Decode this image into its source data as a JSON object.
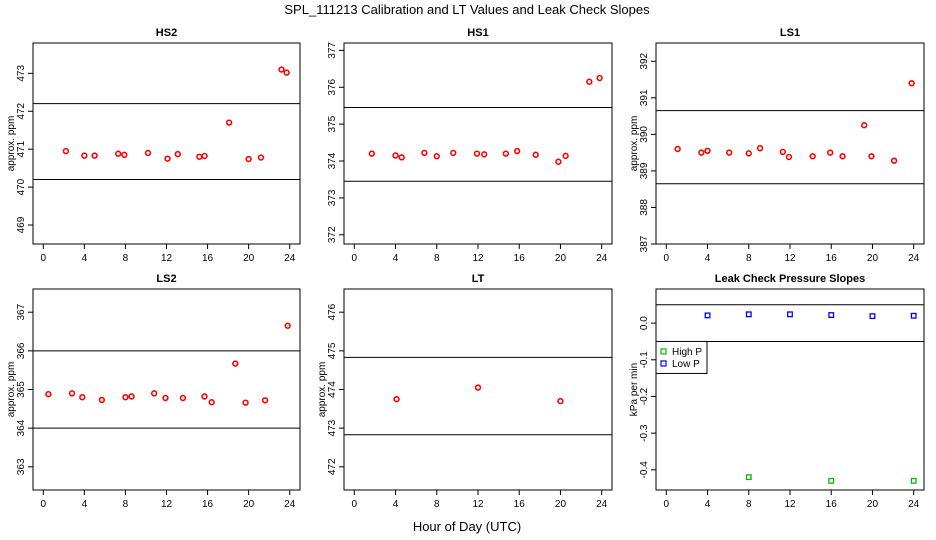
{
  "figure": {
    "title": "SPL_111213  Calibration and LT Values and Leak Check Slopes",
    "xlabel": "Hour of Day (UTC)"
  },
  "chart_data": [
    {
      "id": "hs2",
      "type": "scatter",
      "title": "HS2",
      "ylabel": "approx. ppm",
      "xlim": [
        -1,
        25
      ],
      "ylim": [
        468.5,
        473.8
      ],
      "xticks": [
        0,
        4,
        8,
        12,
        16,
        20,
        24
      ],
      "yticks": [
        469,
        470,
        471,
        472,
        473
      ],
      "ytick_labels": [
        "469",
        "470",
        "471",
        "472",
        "473"
      ],
      "hlines": [
        472.2,
        470.2
      ],
      "series": [
        {
          "name": "HS2",
          "color": "#ff0000",
          "marker": "circle",
          "x": [
            2.2,
            4.0,
            5.0,
            7.3,
            7.9,
            10.2,
            12.1,
            13.1,
            15.2,
            15.7,
            18.1,
            20.0,
            21.2,
            23.2,
            23.7
          ],
          "y": [
            470.95,
            470.83,
            470.83,
            470.88,
            470.85,
            470.9,
            470.75,
            470.87,
            470.8,
            470.82,
            471.7,
            470.74,
            470.78,
            473.1,
            473.02
          ]
        }
      ]
    },
    {
      "id": "hs1",
      "type": "scatter",
      "title": "HS1",
      "ylabel": "",
      "xlim": [
        -1,
        25
      ],
      "ylim": [
        371.75,
        377.2
      ],
      "xticks": [
        0,
        4,
        8,
        12,
        16,
        20,
        24
      ],
      "yticks": [
        372,
        373,
        374,
        375,
        376,
        377
      ],
      "ytick_labels": [
        "372",
        "373",
        "374",
        "375",
        "376",
        "377"
      ],
      "hlines": [
        375.45,
        373.45
      ],
      "series": [
        {
          "name": "HS1",
          "color": "#ff0000",
          "marker": "circle",
          "x": [
            1.7,
            4.0,
            4.6,
            6.8,
            8.0,
            9.6,
            11.9,
            12.6,
            14.7,
            15.8,
            17.6,
            19.8,
            20.5,
            22.8,
            23.8
          ],
          "y": [
            374.2,
            374.15,
            374.1,
            374.22,
            374.13,
            374.22,
            374.2,
            374.18,
            374.2,
            374.27,
            374.17,
            373.98,
            374.14,
            376.15,
            376.25
          ]
        }
      ]
    },
    {
      "id": "ls1",
      "type": "scatter",
      "title": "LS1",
      "ylabel": "approx. ppm",
      "xlim": [
        -1,
        25
      ],
      "ylim": [
        387,
        392.5
      ],
      "xticks": [
        0,
        4,
        8,
        12,
        16,
        20,
        24
      ],
      "yticks": [
        387,
        388,
        389,
        390,
        391,
        392
      ],
      "ytick_labels": [
        "387",
        "388",
        "389",
        "390",
        "391",
        "392"
      ],
      "hlines": [
        390.65,
        388.65
      ],
      "series": [
        {
          "name": "LS1",
          "color": "#ff0000",
          "marker": "circle",
          "x": [
            1.1,
            3.4,
            4.0,
            6.1,
            8.0,
            9.1,
            11.3,
            11.9,
            14.2,
            15.9,
            17.1,
            19.2,
            19.9,
            22.1,
            23.8
          ],
          "y": [
            389.6,
            389.5,
            389.55,
            389.5,
            389.48,
            389.62,
            389.52,
            389.38,
            389.4,
            389.5,
            389.4,
            390.25,
            389.4,
            389.28,
            391.4
          ]
        }
      ]
    },
    {
      "id": "ls2",
      "type": "scatter",
      "title": "LS2",
      "ylabel": "approx. ppm",
      "xlim": [
        -1,
        25
      ],
      "ylim": [
        362.4,
        367.6
      ],
      "xticks": [
        0,
        4,
        8,
        12,
        16,
        20,
        24
      ],
      "yticks": [
        363,
        364,
        365,
        366,
        367
      ],
      "ytick_labels": [
        "363",
        "364",
        "365",
        "366",
        "367"
      ],
      "hlines": [
        366.0,
        364.0
      ],
      "series": [
        {
          "name": "LS2",
          "color": "#ff0000",
          "marker": "circle",
          "x": [
            0.5,
            2.8,
            3.8,
            5.7,
            8.0,
            8.6,
            10.8,
            11.9,
            13.6,
            15.7,
            16.4,
            18.7,
            19.7,
            21.6,
            23.8
          ],
          "y": [
            364.88,
            364.9,
            364.8,
            364.73,
            364.8,
            364.82,
            364.9,
            364.78,
            364.78,
            364.82,
            364.67,
            365.67,
            364.66,
            364.72,
            366.65
          ]
        }
      ]
    },
    {
      "id": "lt",
      "type": "scatter",
      "title": "LT",
      "ylabel": "approx. ppm",
      "xlim": [
        -1,
        25
      ],
      "ylim": [
        471.4,
        476.6
      ],
      "xticks": [
        0,
        4,
        8,
        12,
        16,
        20,
        24
      ],
      "yticks": [
        472,
        473,
        474,
        475,
        476
      ],
      "ytick_labels": [
        "472",
        "473",
        "474",
        "475",
        "476"
      ],
      "hlines": [
        474.83,
        472.83
      ],
      "series": [
        {
          "name": "LT",
          "color": "#ff0000",
          "marker": "circle",
          "x": [
            4.1,
            12.0,
            20.0
          ],
          "y": [
            473.75,
            474.05,
            473.7
          ]
        }
      ]
    },
    {
      "id": "leak",
      "type": "scatter",
      "title": "Leak Check Pressure Slopes",
      "ylabel": "kPa per min",
      "xlim": [
        -1,
        25
      ],
      "ylim": [
        -0.455,
        0.093
      ],
      "xticks": [
        0,
        4,
        8,
        12,
        16,
        20,
        24
      ],
      "yticks": [
        0.0,
        -0.1,
        -0.2,
        -0.3,
        -0.4
      ],
      "ytick_labels": [
        "0.0",
        "-0.1",
        "-0.2",
        "-0.3",
        "-0.4"
      ],
      "hlines": [
        0.05,
        -0.05
      ],
      "legend": {
        "position": "left",
        "entries": [
          "High P",
          "Low P"
        ]
      },
      "series": [
        {
          "name": "High P",
          "color": "#00bb00",
          "marker": "square",
          "x": [
            8,
            16,
            24
          ],
          "y": [
            -0.42,
            -0.43,
            -0.43
          ]
        },
        {
          "name": "Low P",
          "color": "#0000ff",
          "marker": "square",
          "x": [
            4,
            8,
            12,
            16,
            20,
            24
          ],
          "y": [
            0.021,
            0.024,
            0.024,
            0.022,
            0.019,
            0.02
          ]
        }
      ]
    }
  ]
}
